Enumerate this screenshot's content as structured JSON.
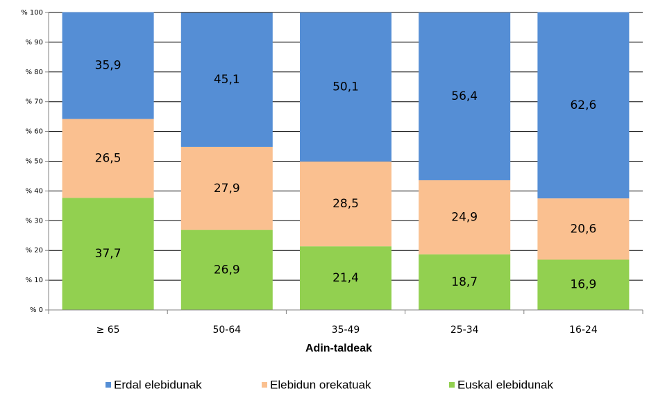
{
  "chart_data": {
    "type": "stacked_bar",
    "x_label": "Adin-taldeak",
    "categories": [
      "≥ 65",
      "50-64",
      "35-49",
      "25-34",
      "16-24"
    ],
    "series": [
      {
        "name": "Erdal elebidunak",
        "color": "#558ed5",
        "values": [
          35.9,
          45.1,
          50.1,
          56.4,
          62.6
        ],
        "value_labels": [
          "35,9",
          "45,1",
          "50,1",
          "56,4",
          "62,6"
        ]
      },
      {
        "name": "Elebidun orekatuak",
        "color": "#fac090",
        "values": [
          26.5,
          27.9,
          28.5,
          24.9,
          20.6
        ],
        "value_labels": [
          "26,5",
          "27,9",
          "28,5",
          "24,9",
          "20,6"
        ]
      },
      {
        "name": "Euskal elebidunak",
        "color": "#92d050",
        "values": [
          37.7,
          26.9,
          21.4,
          18.7,
          16.9
        ],
        "value_labels": [
          "37,7",
          "26,9",
          "21,4",
          "18,7",
          "16,9"
        ]
      }
    ],
    "ylim": [
      0,
      100
    ],
    "yticks": [
      {
        "value": 0,
        "label": "% 0"
      },
      {
        "value": 10,
        "label": "% 10"
      },
      {
        "value": 20,
        "label": "% 20"
      },
      {
        "value": 30,
        "label": "% 30"
      },
      {
        "value": 40,
        "label": "% 40"
      },
      {
        "value": 50,
        "label": "% 50"
      },
      {
        "value": 60,
        "label": "% 60"
      },
      {
        "value": 70,
        "label": "% 70"
      },
      {
        "value": 80,
        "label": "% 80"
      },
      {
        "value": 90,
        "label": "% 90"
      },
      {
        "value": 100,
        "label": "% 100"
      }
    ],
    "grid": true,
    "legend": "bottom"
  }
}
